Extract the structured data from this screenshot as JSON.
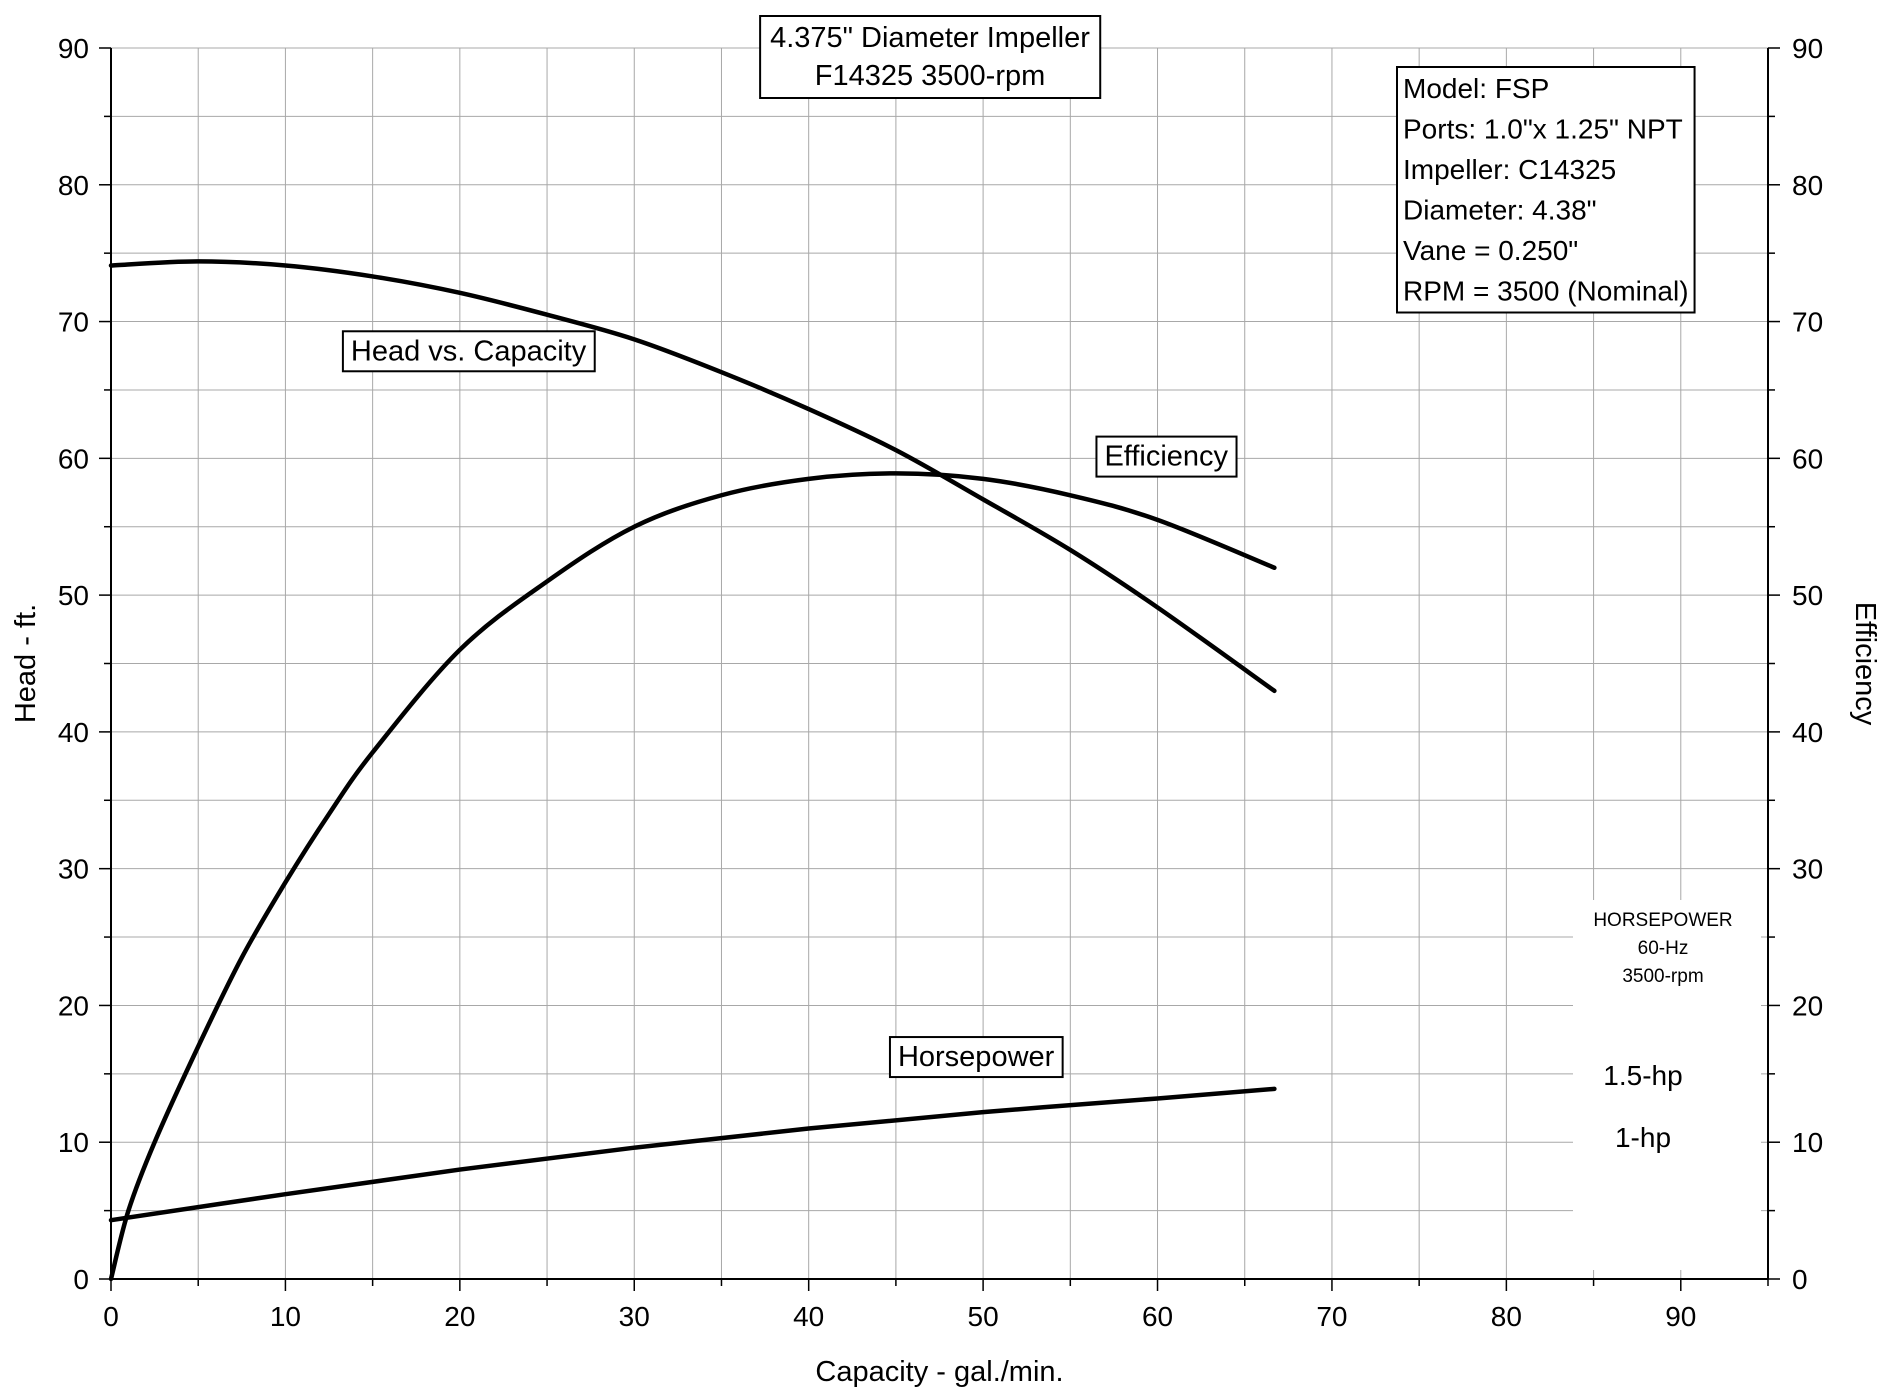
{
  "chart_data": {
    "type": "line",
    "title": [
      "4.375\" Diameter Impeller",
      "F14325 3500-rpm"
    ],
    "xlabel": "Capacity - gal./min.",
    "ylabel": "Head - ft.",
    "y2label": "Efficiency",
    "xlim": [
      0,
      95
    ],
    "ylim": [
      0,
      90
    ],
    "y2lim": [
      0,
      90
    ],
    "x_ticks": [
      0,
      10,
      20,
      30,
      40,
      50,
      60,
      70,
      80,
      90
    ],
    "y_ticks": [
      0,
      10,
      20,
      30,
      40,
      50,
      60,
      70,
      80,
      90
    ],
    "y2_ticks": [
      0,
      10,
      20,
      30,
      40,
      50,
      60,
      70,
      80,
      90
    ],
    "grid": true,
    "series": [
      {
        "name": "Head vs. Capacity",
        "x": [
          0,
          5,
          10,
          15,
          20,
          25,
          30,
          35,
          40,
          45,
          50,
          55,
          60,
          66.7
        ],
        "y": [
          74.1,
          74.4,
          74.1,
          73.3,
          72.1,
          70.5,
          68.7,
          66.3,
          63.6,
          60.6,
          57.0,
          53.3,
          49.1,
          43.0
        ]
      },
      {
        "name": "Efficiency",
        "x": [
          0,
          1,
          2.5,
          5,
          7.5,
          10,
          12.5,
          15,
          20,
          25,
          30,
          35,
          40,
          45,
          50,
          55,
          60,
          66.7
        ],
        "y": [
          0,
          5,
          10,
          17,
          23.5,
          29,
          34,
          38.5,
          46,
          51,
          55,
          57.3,
          58.5,
          58.9,
          58.5,
          57.3,
          55.5,
          52
        ]
      },
      {
        "name": "Horsepower",
        "x": [
          0,
          10,
          20,
          30,
          40,
          50,
          60,
          66.7
        ],
        "y": [
          4.3,
          6.2,
          8.0,
          9.6,
          11.0,
          12.2,
          13.2,
          13.9
        ]
      }
    ],
    "series_labels": [
      {
        "text": "Head vs. Capacity",
        "x": 20.5,
        "y": 67.9
      },
      {
        "text": "Efficiency",
        "x": 60.5,
        "y": 60.2
      },
      {
        "text": "Horsepower",
        "x": 49.6,
        "y": 16.3
      }
    ],
    "info_box": [
      "Model:  FSP",
      "Ports: 1.0\"x 1.25\" NPT",
      "Impeller:  C14325",
      "Diameter:  4.38\"",
      "Vane = 0.250\"",
      "RPM = 3500 (Nominal)"
    ],
    "hp_legend": {
      "heading": [
        "HORSEPOWER",
        "60-Hz",
        "3500-rpm"
      ],
      "lines": [
        {
          "label": "1.5-hp",
          "value": 14.9
        },
        {
          "label": "1-hp",
          "value": 10.4
        }
      ]
    }
  }
}
